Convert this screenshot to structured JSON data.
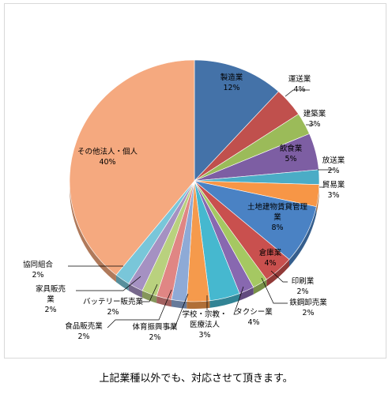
{
  "chart_data": {
    "type": "pie",
    "title": "",
    "start_angle_deg": 0,
    "direction": "clockwise",
    "slices": [
      {
        "label": "製造業",
        "value": 12,
        "pct": "12%",
        "color": "#4472a8"
      },
      {
        "label": "運送業",
        "value": 4,
        "pct": "4%",
        "color": "#c0504d"
      },
      {
        "label": "建築業",
        "value": 3,
        "pct": "3%",
        "color": "#9bbb59"
      },
      {
        "label": "飲食業",
        "value": 5,
        "pct": "5%",
        "color": "#7d5ea3"
      },
      {
        "label": "放送業",
        "value": 2,
        "pct": "2%",
        "color": "#4bacc6"
      },
      {
        "label": "貿易業",
        "value": 3,
        "pct": "3%",
        "color": "#f79646"
      },
      {
        "label": "土地建物賃貸管理業",
        "value": 8,
        "pct": "8%",
        "color": "#4a82c4"
      },
      {
        "label": "倉庫業",
        "value": 4,
        "pct": "4%",
        "color": "#c9504e"
      },
      {
        "label": "印刷業",
        "value": 2,
        "pct": "2%",
        "color": "#a5c862"
      },
      {
        "label": "鉄鋼卸売業",
        "value": 2,
        "pct": "2%",
        "color": "#8868b0"
      },
      {
        "label": "タクシー業",
        "value": 4,
        "pct": "4%",
        "color": "#46b8cf"
      },
      {
        "label": "学校・宗教・医療法人",
        "value": 3,
        "pct": "3%",
        "color": "#f59a4c"
      },
      {
        "label": "体育振興事業",
        "value": 2,
        "pct": "2%",
        "color": "#8eaad6"
      },
      {
        "label": "食品販売業",
        "value": 2,
        "pct": "2%",
        "color": "#e08684"
      },
      {
        "label": "バッテリー販売業",
        "value": 2,
        "pct": "2%",
        "color": "#b9d17e"
      },
      {
        "label": "家具販売業",
        "value": 2,
        "pct": "2%",
        "color": "#a591c2"
      },
      {
        "label": "協同組合",
        "value": 2,
        "pct": "2%",
        "color": "#79c6d9"
      },
      {
        "label": "その他法人・個人",
        "value": 40,
        "pct": "40%",
        "color": "#f5a97f"
      }
    ]
  },
  "caption": "上記業種以外でも、対応させて頂きます。"
}
